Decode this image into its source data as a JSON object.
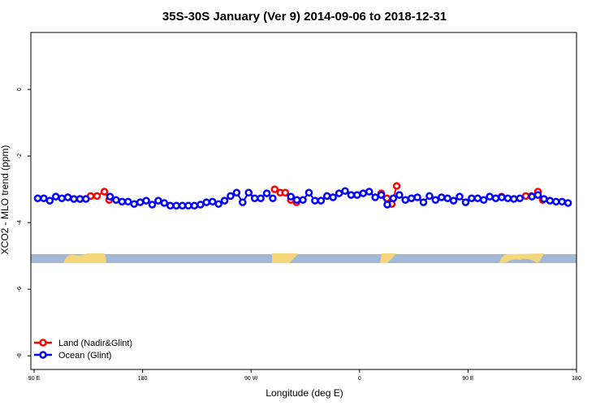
{
  "chart_data": {
    "type": "scatter",
    "title": "35S-30S January (Ver 9)   2014-09-06 to 2018-12-31",
    "x_label": "Longitude (deg E)",
    "y_label": "XCO2 - MLO trend (ppm)",
    "xlim": [
      87.3,
      540
    ],
    "ylim": [
      -8.41,
      1.71
    ],
    "xticks": [
      {
        "value": 90,
        "label": "90 E"
      },
      {
        "value": 180,
        "label": "180"
      },
      {
        "value": 270,
        "label": "90 W"
      },
      {
        "value": 360,
        "label": "0"
      },
      {
        "value": 450,
        "label": "90 E"
      },
      {
        "value": 540,
        "label": "180"
      }
    ],
    "yticks": [
      0,
      -2,
      -4,
      -6,
      -8
    ],
    "legend": "bottom-left",
    "series": [
      {
        "name": "Land (Nadir&Glint)",
        "color": "#ff0000",
        "x": [
          118.1,
          128.2,
          136.9,
          142.2,
          148.3,
          152.3,
          289.6,
          294.3,
          298.3,
          303,
          307.7,
          378,
          382.7,
          386.7,
          390.8,
          477.8,
          497.9,
          502.6,
          508,
          512
        ],
        "values": [
          -3.24,
          -3.29,
          -3.2,
          -3.2,
          -3.07,
          -3.32,
          -3.0,
          -3.1,
          -3.1,
          -3.32,
          -3.39,
          -3.12,
          -3.27,
          -3.44,
          -2.9,
          -3.22,
          -3.2,
          -3.2,
          -3.07,
          -3.32
        ]
      },
      {
        "name": "Ocean (Glint)",
        "color": "#0000ff",
        "x": [
          93,
          98,
          103,
          108,
          113,
          118,
          123,
          128,
          133,
          138,
          143,
          148,
          153,
          158,
          163,
          168,
          173,
          178,
          183,
          188,
          193,
          198,
          203,
          208,
          213,
          218,
          223,
          228,
          233,
          238,
          243,
          248,
          253,
          258,
          263,
          268,
          273,
          278,
          283,
          288,
          293,
          298,
          303,
          308,
          313,
          318,
          323,
          328,
          333,
          338,
          343,
          348,
          353,
          358,
          363,
          368,
          373,
          378,
          383,
          388,
          393,
          398,
          403,
          408,
          413,
          418,
          423,
          428,
          433,
          438,
          443,
          448,
          453,
          458,
          463,
          468,
          473,
          478,
          483,
          488,
          493,
          498,
          503,
          508,
          513,
          518,
          523,
          528,
          533
        ],
        "values": [
          -3.27,
          -3.27,
          -3.34,
          -3.22,
          -3.27,
          -3.24,
          -3.29,
          -3.29,
          -3.29,
          null,
          null,
          null,
          -3.22,
          -3.32,
          -3.37,
          -3.37,
          -3.44,
          -3.39,
          -3.34,
          -3.46,
          -3.34,
          -3.41,
          -3.49,
          -3.49,
          -3.49,
          -3.49,
          -3.49,
          -3.46,
          -3.39,
          -3.37,
          -3.44,
          -3.34,
          -3.2,
          -3.1,
          -3.39,
          -3.1,
          -3.27,
          -3.27,
          -3.12,
          -3.27,
          null,
          null,
          -3.22,
          -3.32,
          -3.32,
          -3.1,
          -3.34,
          -3.34,
          -3.2,
          -3.24,
          -3.12,
          -3.05,
          -3.17,
          -3.17,
          -3.12,
          -3.07,
          -3.24,
          -3.17,
          -3.46,
          -3.27,
          -3.17,
          -3.32,
          -3.27,
          -3.24,
          -3.39,
          -3.2,
          -3.32,
          -3.24,
          -3.27,
          -3.34,
          -3.22,
          -3.39,
          -3.27,
          -3.27,
          -3.32,
          -3.22,
          -3.27,
          -3.24,
          -3.27,
          -3.29,
          -3.27,
          null,
          -3.22,
          -3.17,
          -3.29,
          -3.34,
          -3.37,
          -3.37,
          -3.41
        ]
      }
    ]
  }
}
